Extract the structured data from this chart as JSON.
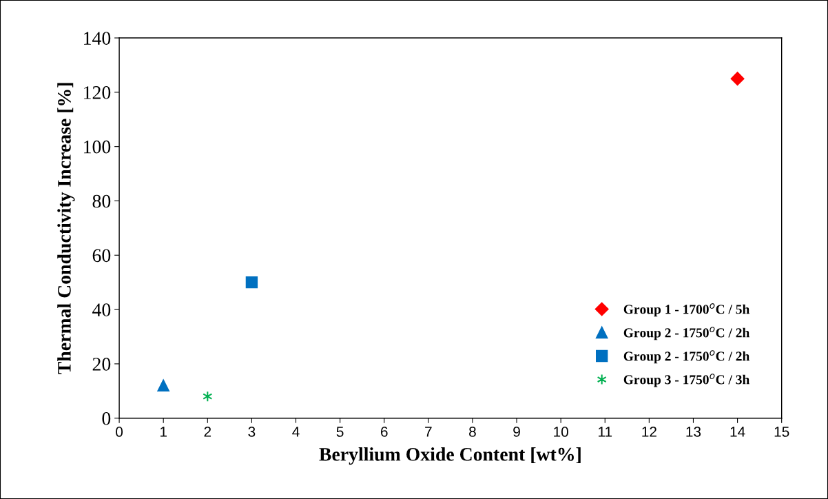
{
  "chart_data": {
    "type": "scatter",
    "xlabel": "Beryllium Oxide Content [wt%]",
    "ylabel": "Thermal Conductivity Increase [%]",
    "xlim": [
      0,
      15
    ],
    "xticks": [
      0,
      1,
      2,
      3,
      4,
      5,
      6,
      7,
      8,
      9,
      10,
      11,
      12,
      13,
      14,
      15
    ],
    "ylim": [
      0,
      140
    ],
    "yticks": [
      0,
      20,
      40,
      60,
      80,
      100,
      120,
      140
    ],
    "grid": false,
    "legend": "lower right",
    "series": [
      {
        "name": "Group 1 - 1700$^{o}$C / 5h",
        "color": "#ff0000",
        "marker": "diamond",
        "x": [
          14
        ],
        "values": [
          125
        ]
      },
      {
        "name": "Group 2 - 1750$^{o}$C / 2h",
        "color": "#0070c0",
        "marker": "triangle",
        "x": [
          1
        ],
        "values": [
          12
        ]
      },
      {
        "name": "Group 2 - 1750$^{o}$C / 2h",
        "color": "#0070c0",
        "marker": "square",
        "x": [
          3
        ],
        "values": [
          50
        ]
      },
      {
        "name": "Group 3 - 1750$^{o}$C / 3h",
        "color": "#00b050",
        "marker": "cross",
        "x": [
          2
        ],
        "values": [
          8
        ]
      }
    ]
  }
}
